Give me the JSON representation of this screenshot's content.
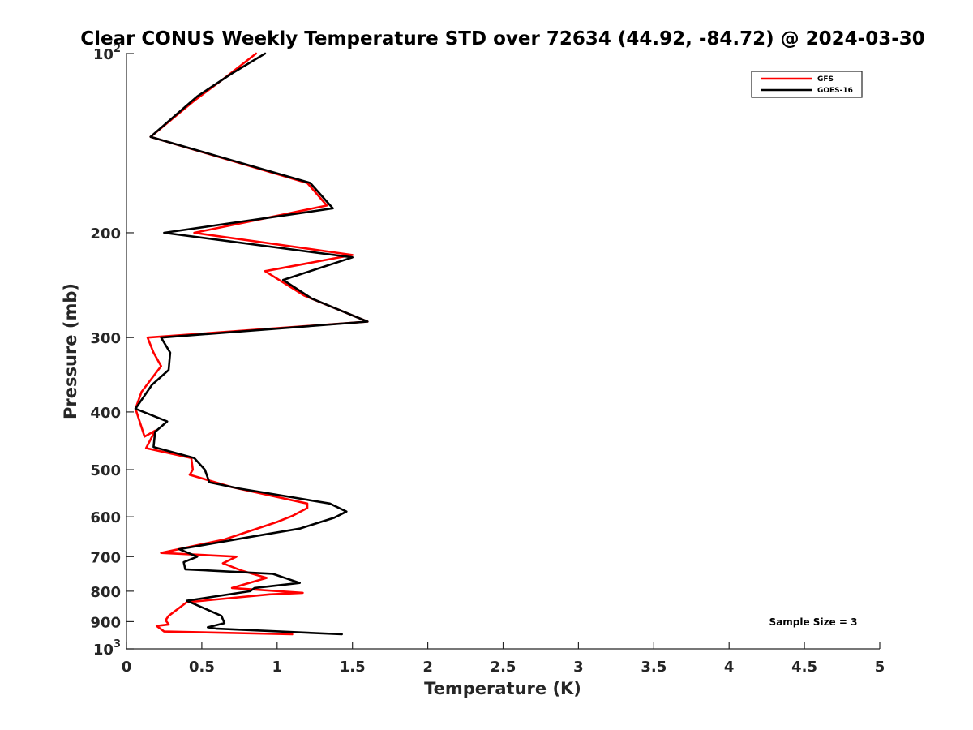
{
  "chart_data": {
    "type": "line",
    "title": "Clear CONUS Weekly Temperature STD over 72634 (44.92, -84.72) @ 2024-03-30",
    "xlabel": "Temperature (K)",
    "ylabel": "Pressure (mb)",
    "xlim": [
      0,
      5
    ],
    "ylim": [
      100,
      1000
    ],
    "y_scale": "log",
    "y_reversed": true,
    "x_ticks": [
      "0",
      "0.5",
      "1",
      "1.5",
      "2",
      "2.5",
      "3",
      "3.5",
      "4",
      "4.5",
      "5"
    ],
    "y_ticks": [
      {
        "value": 100,
        "base": "10",
        "exp": "2"
      },
      {
        "value": 200,
        "label": "200"
      },
      {
        "value": 300,
        "label": "300"
      },
      {
        "value": 400,
        "label": "400"
      },
      {
        "value": 500,
        "label": "500"
      },
      {
        "value": 600,
        "label": "600"
      },
      {
        "value": 700,
        "label": "700"
      },
      {
        "value": 800,
        "label": "800"
      },
      {
        "value": 900,
        "label": "900"
      },
      {
        "value": 1000,
        "base": "10",
        "exp": "3"
      }
    ],
    "grid": false,
    "legend_position": "top-right",
    "annotation": "Sample Size = 3",
    "series": [
      {
        "name": "GFS",
        "color": "#ff0000",
        "points": [
          [
            0.86,
            100
          ],
          [
            0.65,
            110
          ],
          [
            0.45,
            120
          ],
          [
            0.16,
            138
          ],
          [
            1.2,
            165
          ],
          [
            1.33,
            180
          ],
          [
            0.45,
            200
          ],
          [
            1.5,
            218
          ],
          [
            0.92,
            232
          ],
          [
            1.18,
            255
          ],
          [
            1.6,
            282
          ],
          [
            0.14,
            300
          ],
          [
            0.18,
            318
          ],
          [
            0.23,
            335
          ],
          [
            0.1,
            370
          ],
          [
            0.06,
            395
          ],
          [
            0.12,
            440
          ],
          [
            0.19,
            430
          ],
          [
            0.13,
            460
          ],
          [
            0.43,
            478
          ],
          [
            0.44,
            500
          ],
          [
            0.42,
            510
          ],
          [
            0.7,
            535
          ],
          [
            1.2,
            570
          ],
          [
            1.2,
            580
          ],
          [
            1.1,
            598
          ],
          [
            1.0,
            612
          ],
          [
            0.65,
            655
          ],
          [
            0.23,
            690
          ],
          [
            0.73,
            700
          ],
          [
            0.64,
            718
          ],
          [
            0.76,
            738
          ],
          [
            0.93,
            760
          ],
          [
            0.7,
            790
          ],
          [
            1.17,
            805
          ],
          [
            0.95,
            810
          ],
          [
            0.4,
            835
          ],
          [
            0.28,
            880
          ],
          [
            0.26,
            895
          ],
          [
            0.28,
            910
          ],
          [
            0.2,
            915
          ],
          [
            0.25,
            935
          ],
          [
            1.1,
            945
          ]
        ]
      },
      {
        "name": "GOES-16",
        "color": "#000000",
        "points": [
          [
            0.92,
            100
          ],
          [
            0.7,
            108
          ],
          [
            0.47,
            118
          ],
          [
            0.16,
            138
          ],
          [
            1.22,
            165
          ],
          [
            1.37,
            182
          ],
          [
            0.25,
            200
          ],
          [
            1.5,
            220
          ],
          [
            1.04,
            240
          ],
          [
            1.23,
            258
          ],
          [
            1.6,
            282
          ],
          [
            0.23,
            300
          ],
          [
            0.29,
            318
          ],
          [
            0.28,
            340
          ],
          [
            0.17,
            360
          ],
          [
            0.06,
            395
          ],
          [
            0.27,
            415
          ],
          [
            0.19,
            432
          ],
          [
            0.18,
            458
          ],
          [
            0.45,
            478
          ],
          [
            0.52,
            500
          ],
          [
            0.55,
            525
          ],
          [
            0.75,
            538
          ],
          [
            1.35,
            570
          ],
          [
            1.46,
            588
          ],
          [
            1.38,
            602
          ],
          [
            1.15,
            628
          ],
          [
            0.8,
            650
          ],
          [
            0.35,
            680
          ],
          [
            0.47,
            700
          ],
          [
            0.38,
            715
          ],
          [
            0.39,
            735
          ],
          [
            0.97,
            748
          ],
          [
            1.15,
            775
          ],
          [
            0.85,
            790
          ],
          [
            0.82,
            800
          ],
          [
            0.4,
            830
          ],
          [
            0.63,
            880
          ],
          [
            0.65,
            905
          ],
          [
            0.54,
            920
          ],
          [
            0.6,
            925
          ],
          [
            1.43,
            945
          ]
        ]
      }
    ]
  }
}
